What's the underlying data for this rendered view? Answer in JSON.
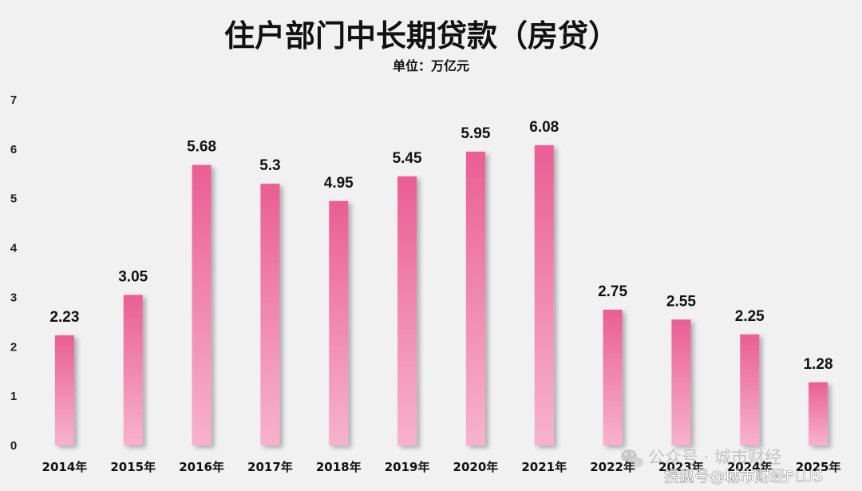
{
  "watermarks": {
    "wechat": "公众号 · 城市财经",
    "sohu": "搜狐号@城市财经PLUS"
  },
  "chart_data": {
    "type": "bar",
    "title": "住户部门中长期贷款（房贷）",
    "subtitle": "单位：万亿元",
    "xlabel": "",
    "ylabel": "",
    "categories": [
      "2014年",
      "2015年",
      "2016年",
      "2017年",
      "2018年",
      "2019年",
      "2020年",
      "2021年",
      "2022年",
      "2023年",
      "2024年",
      "2025年"
    ],
    "values": [
      2.23,
      3.05,
      5.68,
      5.3,
      4.95,
      5.45,
      5.95,
      6.08,
      2.75,
      2.55,
      2.25,
      1.28
    ],
    "value_labels": [
      "2.23",
      "3.05",
      "5.68",
      "5.3",
      "4.95",
      "5.45",
      "5.95",
      "6.08",
      "2.75",
      "2.55",
      "2.25",
      "1.28"
    ],
    "ylim": [
      0,
      7
    ],
    "yticks": [
      "0",
      "1",
      "2",
      "3",
      "4",
      "5",
      "6",
      "7"
    ],
    "grid": false,
    "legend": "none",
    "colors": {
      "bar_top": "#ea5f93",
      "bar_bottom": "#f7b3cb",
      "background": "#f1f1f1"
    }
  }
}
